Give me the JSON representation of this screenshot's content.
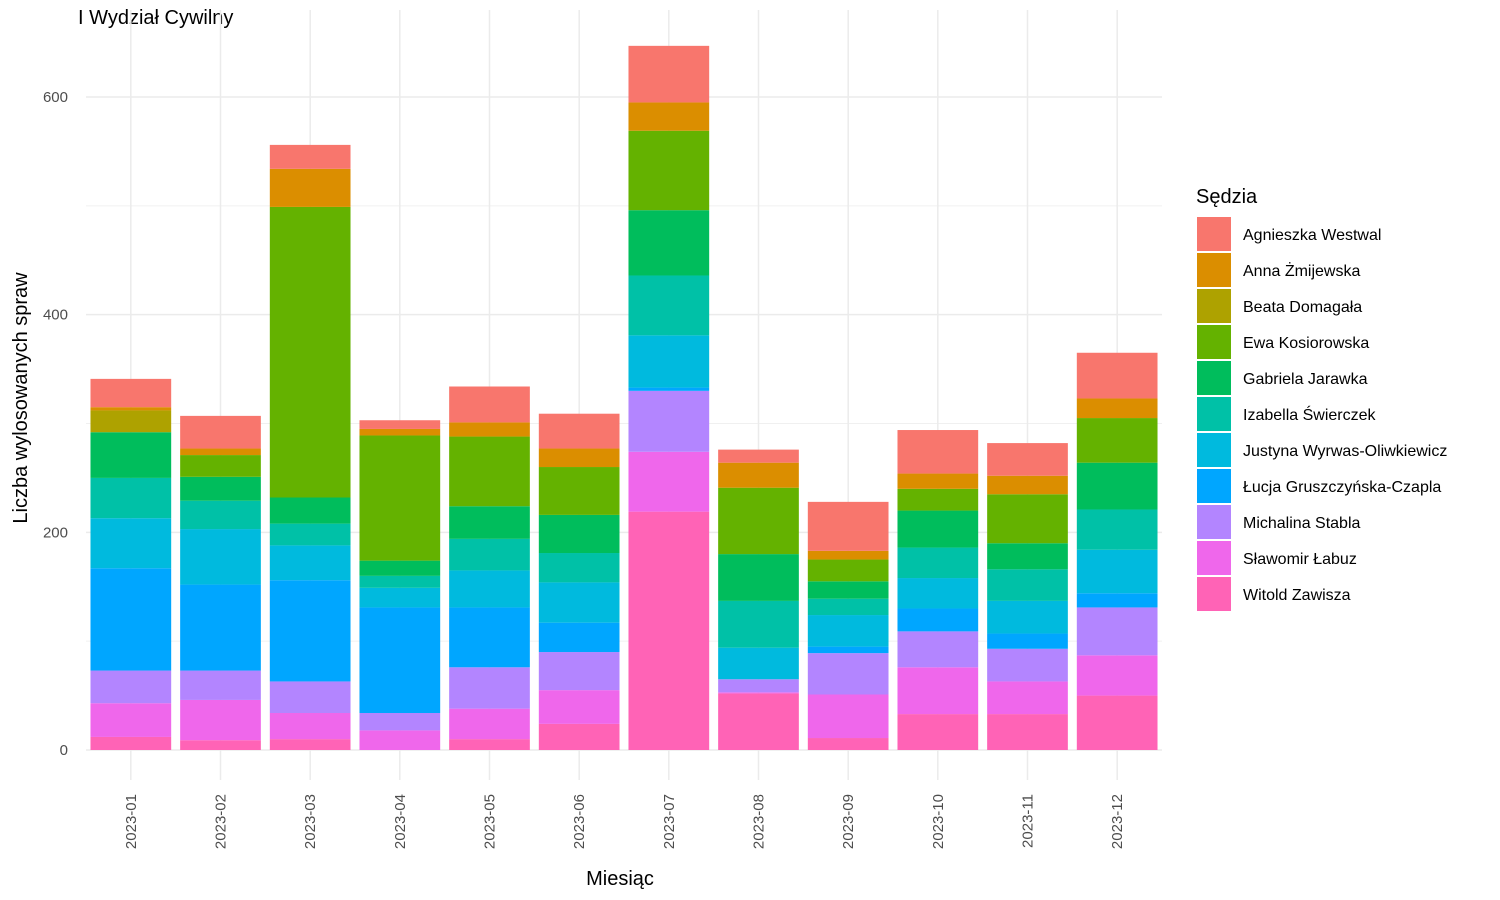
{
  "chart_data": {
    "type": "bar",
    "stacked": true,
    "title": "I Wydział Cywilny",
    "xlabel": "Miesiąc",
    "ylabel": "Liczba wylosowanych spraw",
    "ylim": [
      0,
      650
    ],
    "yticks": [
      0,
      200,
      400,
      600
    ],
    "grid": true,
    "legend_title": "Sędzia",
    "legend_position": "right",
    "categories": [
      "2023-01",
      "2023-02",
      "2023-03",
      "2023-04",
      "2023-05",
      "2023-06",
      "2023-07",
      "2023-08",
      "2023-09",
      "2023-10",
      "2023-11",
      "2023-12"
    ],
    "series": [
      {
        "name": "Agnieszka Westwal",
        "color": "#F8766D",
        "values": [
          26,
          30,
          22,
          8,
          33,
          32,
          52,
          12,
          45,
          40,
          30,
          42
        ]
      },
      {
        "name": "Anna Żmijewska",
        "color": "#DB8E00",
        "values": [
          3,
          6,
          35,
          6,
          13,
          17,
          26,
          23,
          8,
          14,
          17,
          18
        ]
      },
      {
        "name": "Beata Domagała",
        "color": "#AEA200",
        "values": [
          20,
          0,
          0,
          0,
          0,
          0,
          0,
          0,
          0,
          0,
          0,
          0
        ]
      },
      {
        "name": "Ewa Kosiorowska",
        "color": "#64B200",
        "values": [
          0,
          20,
          267,
          115,
          64,
          44,
          73,
          61,
          20,
          20,
          45,
          41
        ]
      },
      {
        "name": "Gabriela Jarawka",
        "color": "#00BD5C",
        "values": [
          42,
          22,
          24,
          14,
          30,
          35,
          60,
          43,
          16,
          34,
          24,
          43
        ]
      },
      {
        "name": "Izabella Świerczek",
        "color": "#00C1A7",
        "values": [
          37,
          26,
          20,
          11,
          29,
          27,
          55,
          43,
          15,
          28,
          29,
          37
        ]
      },
      {
        "name": "Justyna Wyrwas-Oliwkiewicz",
        "color": "#00BADE",
        "values": [
          46,
          51,
          32,
          18,
          34,
          37,
          48,
          29,
          29,
          28,
          30,
          40
        ]
      },
      {
        "name": "Łucja Gruszczyńska-Czapla",
        "color": "#00A6FF",
        "values": [
          94,
          79,
          93,
          97,
          55,
          27,
          3,
          0,
          6,
          21,
          14,
          13
        ]
      },
      {
        "name": "Michalina Stabla",
        "color": "#B385FF",
        "values": [
          30,
          27,
          29,
          16,
          38,
          35,
          56,
          12,
          38,
          33,
          30,
          44
        ]
      },
      {
        "name": "Sławomir Łabuz",
        "color": "#EF67EB",
        "values": [
          31,
          37,
          24,
          18,
          28,
          31,
          55,
          1,
          40,
          43,
          30,
          37
        ]
      },
      {
        "name": "Witold Zawisza",
        "color": "#FF63B6",
        "values": [
          12,
          9,
          10,
          0,
          10,
          24,
          219,
          52,
          11,
          33,
          33,
          50
        ]
      }
    ]
  }
}
